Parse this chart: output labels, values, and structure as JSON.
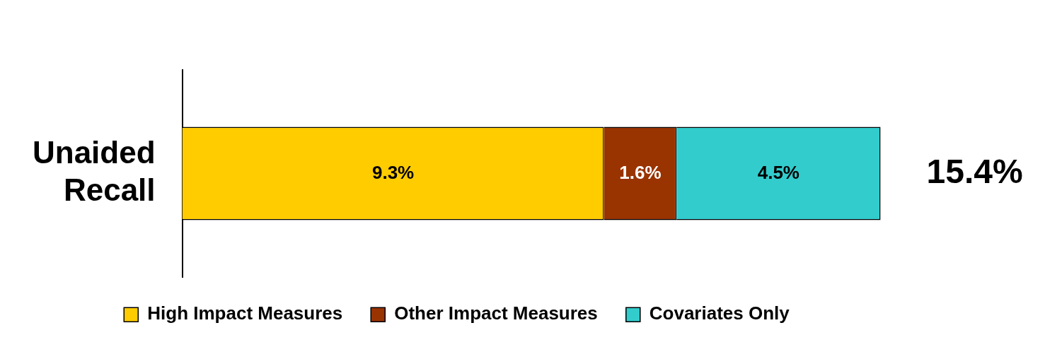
{
  "chart_data": {
    "type": "bar",
    "orientation": "horizontal",
    "stacked": true,
    "categories": [
      "Unaided Recall"
    ],
    "series": [
      {
        "name": "High Impact Measures",
        "color": "#ffcc00",
        "values": [
          9.3
        ],
        "value_labels": [
          "9.3%"
        ]
      },
      {
        "name": "Other Impact Measures",
        "color": "#993300",
        "values": [
          1.6
        ],
        "value_labels": [
          "1.6%"
        ]
      },
      {
        "name": "Covariates Only",
        "color": "#33cccc",
        "values": [
          4.5
        ],
        "value_labels": [
          "4.5%"
        ]
      }
    ],
    "totals": [
      "15.4%"
    ],
    "legend": "bottom"
  }
}
